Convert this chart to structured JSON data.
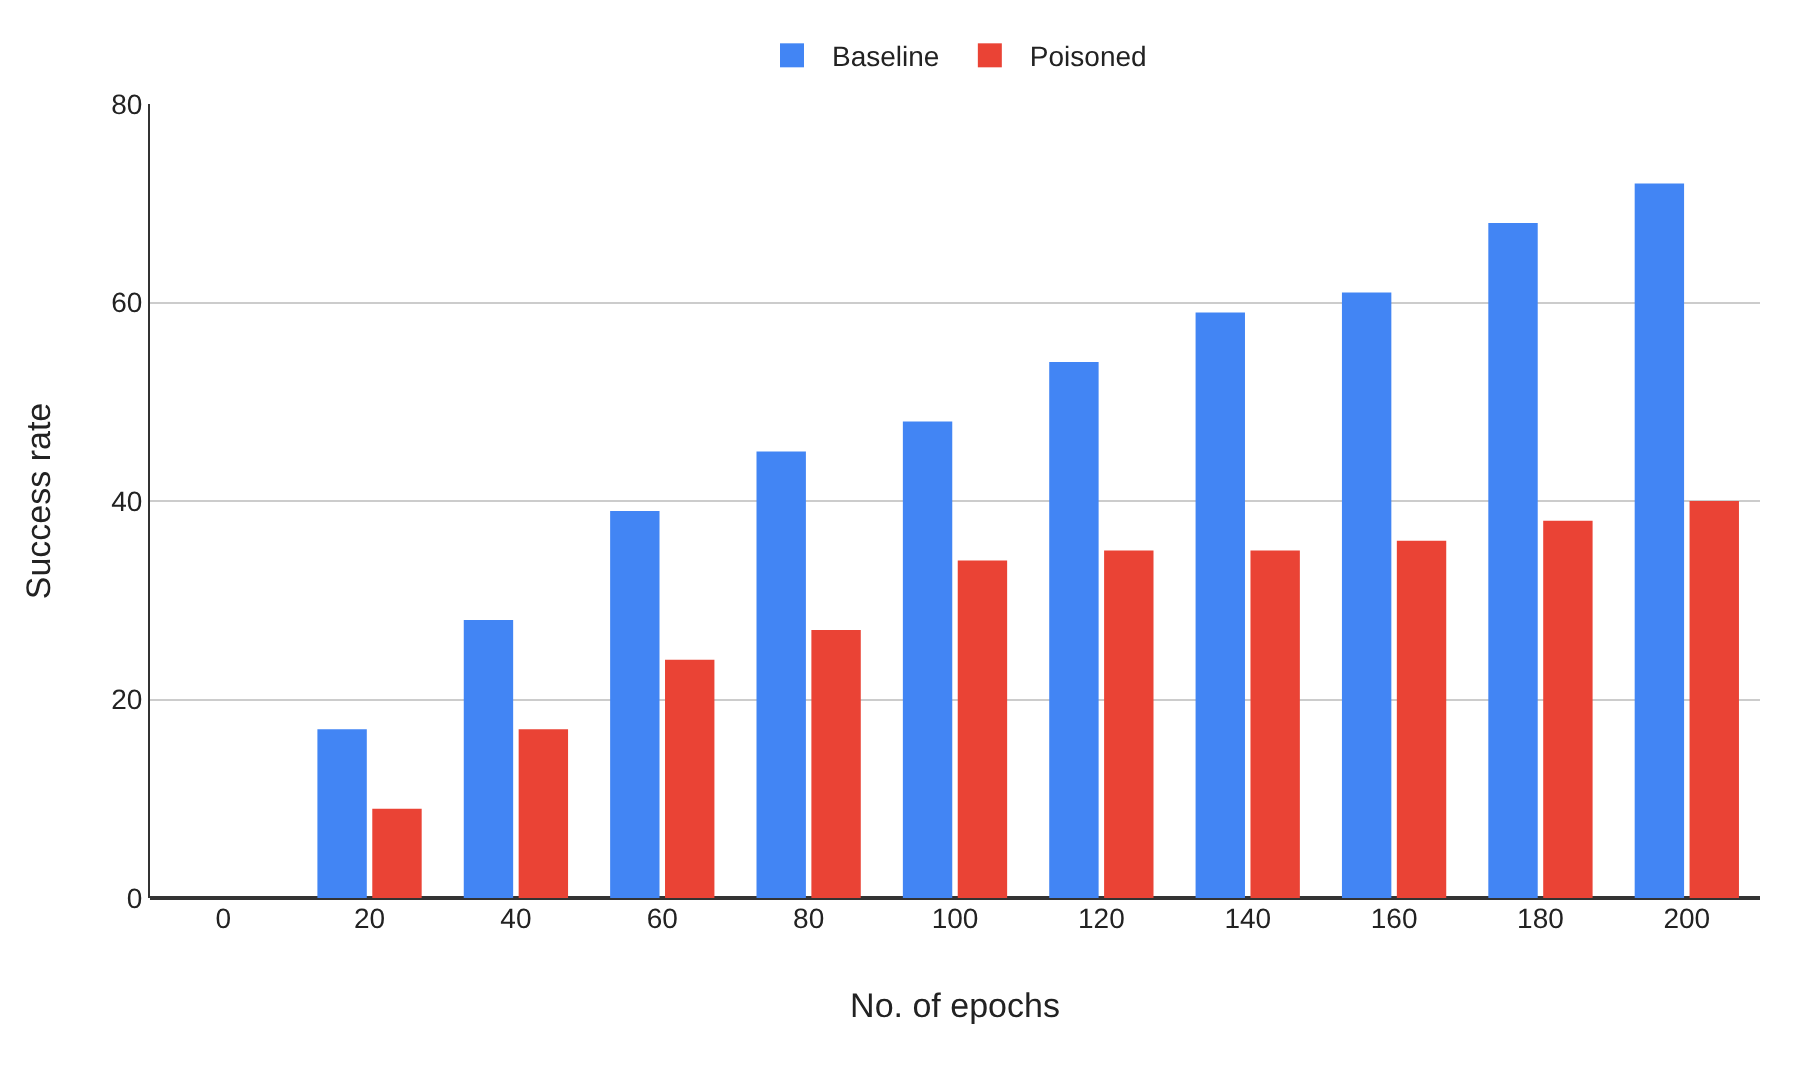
{
  "chart_data": {
    "type": "bar",
    "xlabel": "No. of epochs",
    "ylabel": "Success rate",
    "categories": [
      "0",
      "20",
      "40",
      "60",
      "80",
      "100",
      "120",
      "140",
      "160",
      "180",
      "200"
    ],
    "series": [
      {
        "name": "Baseline",
        "color": "#4285f4",
        "values": [
          null,
          17,
          28,
          39,
          45,
          48,
          54,
          59,
          61,
          68,
          72
        ]
      },
      {
        "name": "Poisoned",
        "color": "#ea4335",
        "values": [
          null,
          9,
          17,
          24,
          27,
          34,
          35,
          35,
          36,
          38,
          40
        ]
      }
    ],
    "ylim": [
      0,
      80
    ],
    "yticks": [
      0,
      20,
      40,
      60,
      80
    ],
    "grid": "y",
    "legend": "top"
  }
}
